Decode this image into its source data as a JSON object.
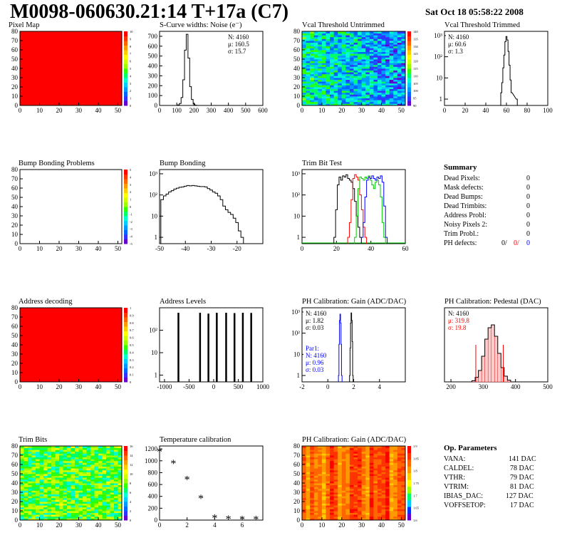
{
  "header": {
    "title": "M0098-060630.21:14 T+17a (C7)",
    "date": "Sat Oct 18 05:58:22 2008"
  },
  "colors": {
    "red_map": "#ff0000",
    "blue_text": "#0000ff",
    "red_text": "#ff0000"
  },
  "chart_data": [
    {
      "id": "pixel_map",
      "type": "heatmap",
      "title": "Pixel Map",
      "xlim": [
        0,
        52
      ],
      "ylim": [
        0,
        80
      ],
      "xticks": [
        "0",
        "10",
        "20",
        "30",
        "40",
        "50"
      ],
      "yticks": [
        "0",
        "10",
        "20",
        "30",
        "40",
        "50",
        "60",
        "70",
        "80"
      ],
      "zlim": [
        0,
        10
      ],
      "zticks": [
        "0",
        "1",
        "2",
        "3",
        "4",
        "5",
        "6",
        "7",
        "8",
        "9",
        "10"
      ],
      "uniform_value": 10
    },
    {
      "id": "scurve_noise",
      "type": "bar",
      "title": "S-Curve widths: Noise (e⁻)",
      "xlim": [
        0,
        600
      ],
      "ylim": [
        0,
        750
      ],
      "xticks": [
        "0",
        "100",
        "200",
        "300",
        "400",
        "500",
        "600"
      ],
      "yticks": [
        "0",
        "100",
        "200",
        "300",
        "400",
        "500",
        "600",
        "700"
      ],
      "stats": [
        "N: 4160",
        "μ: 160.5",
        "σ: 15.7"
      ],
      "bins_x": [
        110,
        120,
        130,
        140,
        150,
        160,
        170,
        180,
        190,
        200,
        210
      ],
      "values": [
        5,
        20,
        80,
        260,
        560,
        720,
        480,
        190,
        60,
        15,
        3
      ]
    },
    {
      "id": "vcal_untrimmed",
      "type": "heatmap",
      "title": "Vcal Threshold Untrimmed",
      "xlim": [
        0,
        52
      ],
      "ylim": [
        0,
        80
      ],
      "xticks": [
        "0",
        "10",
        "20",
        "30",
        "40",
        "50"
      ],
      "yticks": [
        "0",
        "10",
        "20",
        "30",
        "40",
        "50",
        "60",
        "70",
        "80"
      ],
      "zticks": [
        "90",
        "95",
        "100",
        "105",
        "110",
        "115",
        "120",
        "125",
        "130",
        "135",
        "140"
      ]
    },
    {
      "id": "vcal_trimmed",
      "type": "bar",
      "title": "Vcal Threshold Trimmed",
      "xlim": [
        0,
        100
      ],
      "log_y": true,
      "xticks": [
        "0",
        "20",
        "40",
        "60",
        "80",
        "100"
      ],
      "yticks": [
        "1",
        "10",
        "10²",
        "10³"
      ],
      "stats": [
        "N: 4160",
        "μ: 60.6",
        "σ: 1.3"
      ],
      "bins_x": [
        55,
        56,
        57,
        58,
        59,
        60,
        61,
        62,
        63,
        64,
        65,
        70
      ],
      "values": [
        2,
        6,
        30,
        120,
        520,
        900,
        620,
        180,
        40,
        8,
        2,
        1
      ]
    },
    {
      "id": "bump_problems",
      "type": "heatmap",
      "title": "Bump Bonding Problems",
      "xlim": [
        0,
        52
      ],
      "ylim": [
        0,
        80
      ],
      "xticks": [
        "0",
        "10",
        "20",
        "30",
        "40",
        "50"
      ],
      "yticks": [
        "0",
        "10",
        "20",
        "30",
        "40",
        "50",
        "60",
        "70",
        "80"
      ],
      "zticks": [
        "-5",
        "-4",
        "-3",
        "-2",
        "-1",
        "0",
        "1",
        "2",
        "3",
        "4",
        "5"
      ],
      "uniform_value": 0
    },
    {
      "id": "bump_bonding",
      "type": "bar",
      "title": "Bump Bonding",
      "xlim": [
        -50,
        -10
      ],
      "log_y": true,
      "xticks": [
        "-50",
        "-40",
        "-30",
        "-20"
      ],
      "yticks": [
        "1",
        "10",
        "10²",
        "10³"
      ],
      "bins_x": [
        -49,
        -48,
        -47,
        -46,
        -45,
        -44,
        -43,
        -42,
        -41,
        -40,
        -39,
        -38,
        -37,
        -36,
        -35,
        -34,
        -33,
        -32,
        -31,
        -30,
        -29,
        -28,
        -27,
        -26,
        -25,
        -24,
        -23,
        -22,
        -21,
        -20,
        -19,
        -18
      ],
      "values": [
        60,
        90,
        110,
        140,
        160,
        190,
        210,
        230,
        240,
        260,
        280,
        270,
        280,
        270,
        260,
        250,
        250,
        240,
        200,
        170,
        140,
        120,
        90,
        60,
        30,
        20,
        15,
        12,
        8,
        5,
        2,
        1
      ]
    },
    {
      "id": "trim_bit_test",
      "type": "line",
      "title": "Trim Bit Test",
      "xlim": [
        0,
        60
      ],
      "log_y": true,
      "xticks": [
        "0",
        "20",
        "40",
        "60"
      ],
      "yticks": [
        "1",
        "10",
        "10²",
        "10³"
      ],
      "series": [
        {
          "color": "#000000",
          "x": [
            19,
            20,
            21,
            22,
            23,
            24,
            25,
            26,
            27,
            28,
            29,
            30,
            31,
            32,
            33,
            34
          ],
          "values": [
            1,
            20,
            300,
            700,
            500,
            800,
            700,
            900,
            600,
            500,
            400,
            200,
            50,
            10,
            3,
            1
          ]
        },
        {
          "color": "#ff0000",
          "x": [
            27,
            28,
            29,
            30,
            31,
            32,
            33,
            34,
            35,
            36,
            37
          ],
          "values": [
            1,
            5,
            60,
            600,
            900,
            700,
            500,
            100,
            20,
            3,
            1
          ]
        },
        {
          "color": "#00cc00",
          "x": [
            31,
            32,
            33,
            34,
            35,
            36,
            37,
            38,
            39,
            40,
            41,
            42,
            43,
            44,
            45,
            46,
            47,
            48
          ],
          "values": [
            1,
            10,
            200,
            700,
            600,
            500,
            700,
            600,
            800,
            500,
            300,
            200,
            400,
            500,
            300,
            80,
            5,
            1
          ]
        },
        {
          "color": "#0000ff",
          "x": [
            35,
            36,
            37,
            38,
            39,
            40,
            41,
            42,
            43,
            44,
            45,
            46,
            47,
            48,
            49
          ],
          "values": [
            1,
            5,
            80,
            500,
            700,
            600,
            800,
            600,
            500,
            700,
            600,
            800,
            400,
            30,
            1
          ]
        }
      ]
    },
    {
      "id": "address_decoding",
      "type": "heatmap",
      "title": "Address decoding",
      "xlim": [
        0,
        52
      ],
      "ylim": [
        0,
        80
      ],
      "xticks": [
        "0",
        "10",
        "20",
        "30",
        "40",
        "50"
      ],
      "yticks": [
        "0",
        "10",
        "20",
        "30",
        "40",
        "50",
        "60",
        "70",
        "80"
      ],
      "zticks": [
        "0",
        "0.1",
        "0.2",
        "0.3",
        "0.4",
        "0.5",
        "0.6",
        "0.7",
        "0.8",
        "0.9",
        "1"
      ],
      "uniform_value": 1
    },
    {
      "id": "address_levels",
      "type": "bar",
      "title": "Address Levels",
      "xlim": [
        -1100,
        1000
      ],
      "log_y": true,
      "xticks": [
        "-1000",
        "-500",
        "0",
        "500",
        "1000"
      ],
      "yticks": [
        "1",
        "10",
        "10²"
      ],
      "peaks_x": [
        -720,
        -280,
        -110,
        60,
        250,
        420,
        590,
        760
      ],
      "values": [
        600,
        600,
        550,
        600,
        600,
        580,
        600,
        590
      ]
    },
    {
      "id": "ph_gain",
      "type": "bar",
      "title": "PH Calibration: Gain (ADC/DAC)",
      "xlim": [
        -2,
        6
      ],
      "log_y": true,
      "xticks": [
        "-2",
        "0",
        "2",
        "4"
      ],
      "yticks": [
        "1",
        "10",
        "10²",
        "10³"
      ],
      "stats": [
        "N: 4160",
        "μ: 1.82",
        "σ: 0.03"
      ],
      "stats2": [
        "Par1:",
        "N: 4160",
        "μ: 0.96",
        "σ: 0.03"
      ],
      "series": [
        {
          "color": "#000000",
          "x": [
            1.7,
            1.74,
            1.78,
            1.82,
            1.86,
            1.9,
            1.94
          ],
          "values": [
            1,
            20,
            300,
            900,
            400,
            40,
            1
          ]
        },
        {
          "color": "#0000ff",
          "x": [
            0.84,
            0.88,
            0.92,
            0.96,
            1.0,
            1.04,
            1.08
          ],
          "values": [
            1,
            30,
            400,
            800,
            300,
            30,
            1
          ]
        }
      ]
    },
    {
      "id": "ph_pedestal",
      "type": "bar",
      "title": "PH Calibration: Pedestal (DAC)",
      "xlim": [
        180,
        500
      ],
      "ylim": [
        0,
        130
      ],
      "xticks": [
        "200",
        "300",
        "400",
        "500"
      ],
      "stats": [
        "N: 4160",
        "μ: 319.8",
        "σ: 19.8"
      ],
      "bins_x": [
        270,
        280,
        290,
        300,
        310,
        320,
        330,
        340,
        350,
        360,
        370,
        380
      ],
      "values": [
        2,
        8,
        20,
        45,
        75,
        95,
        100,
        80,
        50,
        25,
        10,
        3
      ]
    },
    {
      "id": "trim_bits",
      "type": "heatmap",
      "title": "Trim Bits",
      "xlim": [
        0,
        52
      ],
      "ylim": [
        0,
        80
      ],
      "xticks": [
        "0",
        "10",
        "20",
        "30",
        "40",
        "50"
      ],
      "yticks": [
        "0",
        "10",
        "20",
        "30",
        "40",
        "50",
        "60",
        "70",
        "80"
      ],
      "zticks": [
        "0",
        "2",
        "4",
        "6",
        "8",
        "10",
        "12",
        "14",
        "16"
      ]
    },
    {
      "id": "temperature_calibration",
      "type": "scatter",
      "title": "Temperature calibration",
      "xlim": [
        0,
        7.5
      ],
      "ylim": [
        0,
        1250
      ],
      "xticks": [
        "0",
        "2",
        "4",
        "6"
      ],
      "yticks": [
        "0",
        "200",
        "400",
        "600",
        "800",
        "1000",
        "1200"
      ],
      "x": [
        0,
        1,
        2,
        3,
        4,
        5,
        6,
        7
      ],
      "values": [
        1150,
        950,
        680,
        360,
        30,
        10,
        5,
        5
      ]
    },
    {
      "id": "ph_gain_map",
      "type": "heatmap",
      "title": "PH Calibration: Gain (ADC/DAC)",
      "xlim": [
        0,
        52
      ],
      "ylim": [
        0,
        80
      ],
      "xticks": [
        "0",
        "10",
        "20",
        "30",
        "40",
        "50"
      ],
      "yticks": [
        "0",
        "10",
        "20",
        "30",
        "40",
        "50",
        "60",
        "70",
        "80"
      ],
      "zticks": [
        "1.6",
        "1.65",
        "1.7",
        "1.75",
        "1.8",
        "1.85",
        "1.9"
      ]
    }
  ],
  "summary": {
    "title": "Summary",
    "rows": [
      {
        "label": "Dead Pixels:",
        "value": "0"
      },
      {
        "label": "Mask defects:",
        "value": "0"
      },
      {
        "label": "Dead Bumps:",
        "value": "0"
      },
      {
        "label": "Dead Trimbits:",
        "value": "0"
      },
      {
        "label": "Address Probl:",
        "value": "0"
      },
      {
        "label": "Noisy Pixels 2:",
        "value": "0"
      },
      {
        "label": "Trim Probl.:",
        "value": "0"
      }
    ],
    "ph_defects": {
      "label": "PH defects:",
      "v1": "0/",
      "v2": "0/",
      "v3": "0"
    }
  },
  "op_params": {
    "title": "Op. Parameters",
    "rows": [
      {
        "label": "VANA:",
        "value": "141 DAC"
      },
      {
        "label": "CALDEL:",
        "value": "78 DAC"
      },
      {
        "label": "VTHR:",
        "value": "79 DAC"
      },
      {
        "label": "VTRIM:",
        "value": "81 DAC"
      },
      {
        "label": "IBIAS_DAC:",
        "value": "127 DAC"
      },
      {
        "label": "VOFFSETOP:",
        "value": "17 DAC"
      }
    ]
  }
}
